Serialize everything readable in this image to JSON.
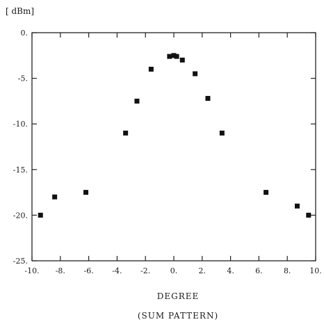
{
  "chart_data": {
    "type": "scatter",
    "title": "",
    "subtitle": "(SUM PATTERN)",
    "xlabel": "DEGREE",
    "ylabel": "[ dBm]",
    "xlim": [
      -10,
      10
    ],
    "ylim": [
      -25,
      0
    ],
    "grid": false,
    "x_ticks": [
      -10,
      -8,
      -6,
      -4,
      -2,
      0,
      2,
      4,
      6,
      8,
      10
    ],
    "y_ticks": [
      0,
      -5,
      -10,
      -15,
      -20,
      -25
    ],
    "x_tick_labels": [
      "-10.",
      "-8.",
      "-6.",
      "-4.",
      "-2.",
      "0.",
      "2.",
      "4.",
      "6.",
      "8.",
      "10."
    ],
    "y_tick_labels": [
      "0.",
      "-5.",
      "-10.",
      "-15.",
      "-20.",
      "-25."
    ],
    "marker_color": "#111111",
    "series": [
      {
        "x": [
          -9.4,
          -8.4,
          -6.2,
          -3.4,
          -2.6,
          -1.6,
          -0.3,
          0.0,
          0.2,
          0.6,
          1.5,
          2.4,
          3.4,
          6.5,
          8.7,
          9.5
        ],
        "y": [
          -20.0,
          -18.0,
          -17.5,
          -11.0,
          -7.5,
          -4.0,
          -2.6,
          -2.5,
          -2.6,
          -3.0,
          -4.5,
          -7.2,
          -11.0,
          -17.5,
          -19.0,
          -20.0
        ]
      }
    ]
  }
}
